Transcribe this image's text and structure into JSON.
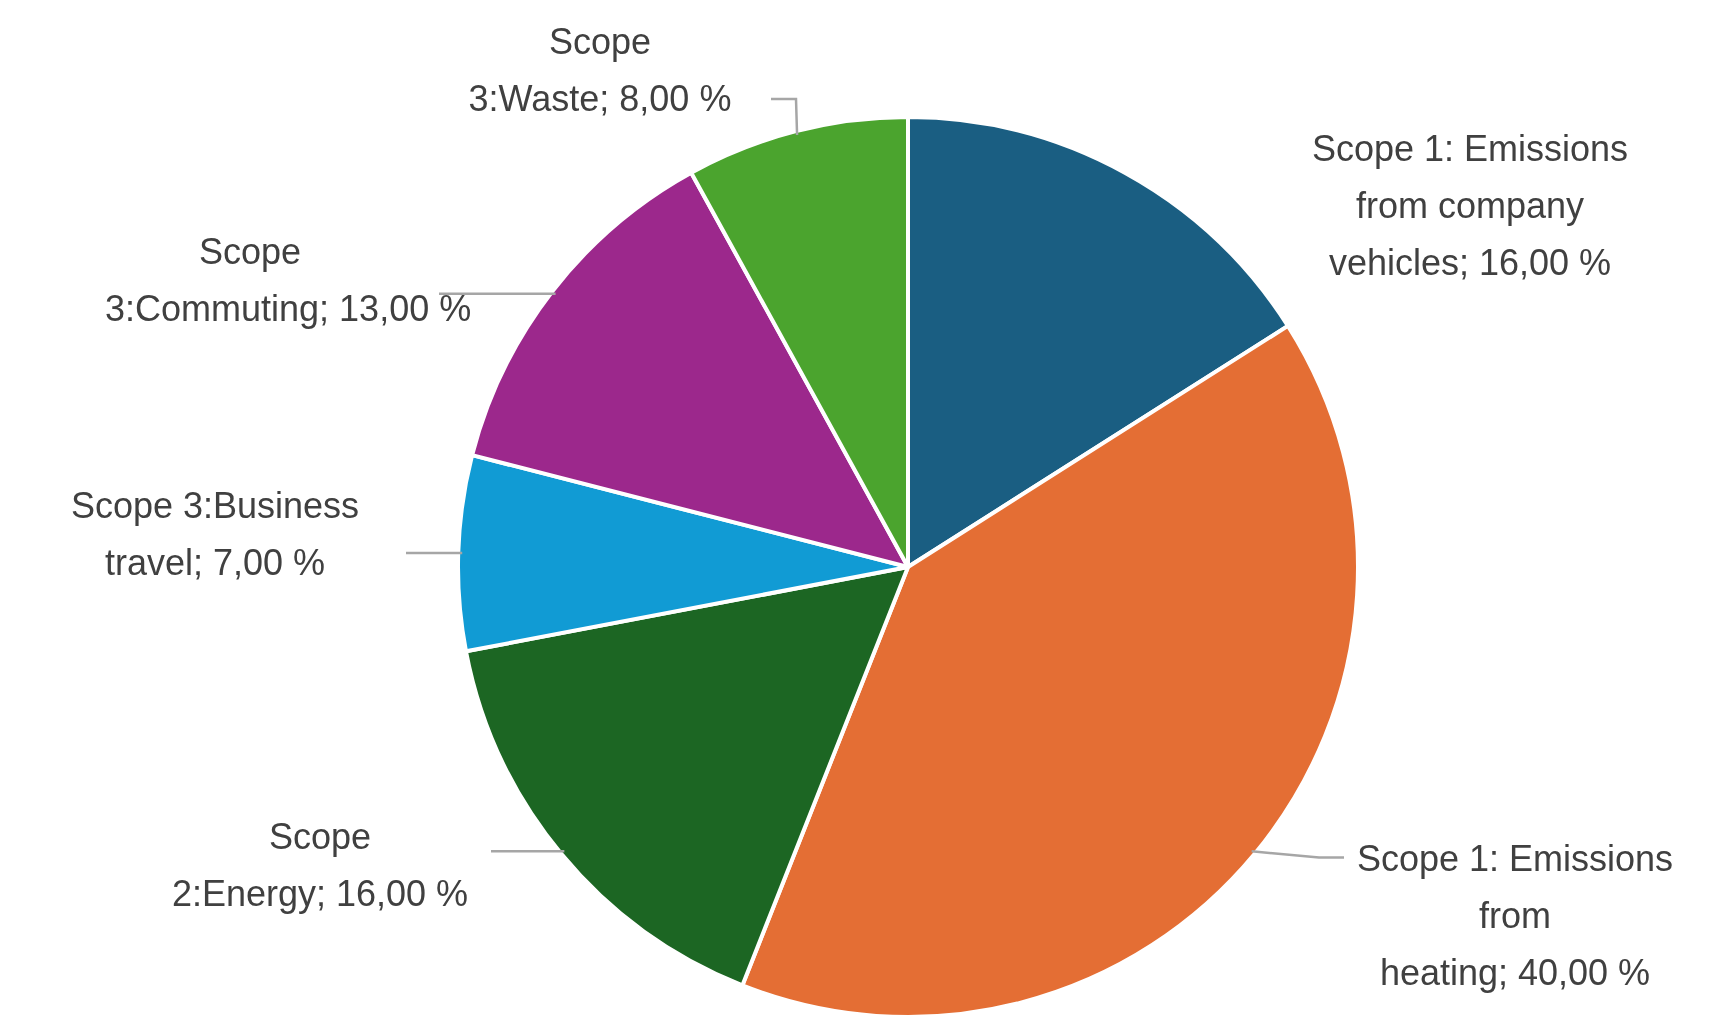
{
  "chart_data": {
    "type": "pie",
    "categories": [
      "Scope 1: Emissions from company vehicles",
      "Scope 1: Emissions from heating",
      "Scope 2:Energy",
      "Scope 3:Business travel",
      "Scope 3:Commuting",
      "Scope 3:Waste"
    ],
    "values": [
      16,
      40,
      16,
      7,
      13,
      8
    ],
    "colors": [
      "#1a5e82",
      "#e46e34",
      "#1c6623",
      "#119bd4",
      "#9c288c",
      "#4ba42e"
    ],
    "value_labels": [
      "16,00 %",
      "40,00 %",
      "16,00 %",
      "7,00 %",
      "13,00 %",
      "8,00 %"
    ],
    "legend": false
  }
}
